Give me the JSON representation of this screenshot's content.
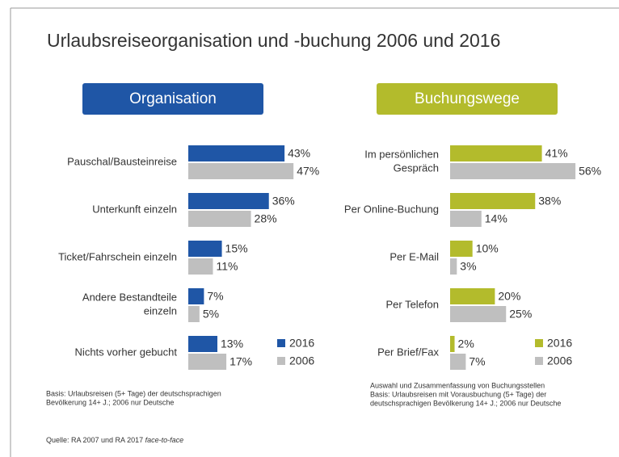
{
  "title": "Urlaubsreiseorganisation und -buchung 2006 und 2016",
  "source": "Quelle: RA 2007 und RA 2017 ",
  "source_italic": "face-to-face",
  "chart_data": [
    {
      "type": "bar",
      "orientation": "horizontal",
      "title": "Organisation",
      "header_color": "#1f56a6",
      "categories": [
        "Pauschal/Bausteinreise",
        "Unterkunft einzeln",
        "Ticket/Fahrschein einzeln",
        "Andere Bestandteile\neinzeln",
        "Nichts vorher gebucht"
      ],
      "series": [
        {
          "name": "2016",
          "color": "#1f56a6",
          "values": [
            43,
            36,
            15,
            7,
            13
          ],
          "value_labels": [
            "43%",
            "36%",
            "15%",
            "7%",
            "13%"
          ]
        },
        {
          "name": "2006",
          "color": "#bfbfbf",
          "values": [
            47,
            28,
            11,
            5,
            17
          ],
          "value_labels": [
            "47%",
            "28%",
            "11%",
            "5%",
            "17%"
          ]
        }
      ],
      "notes": [
        "Basis: Urlaubsreisen (5+ Tage) der deutschsprachigen",
        "Bevölkerung 14+ J.; 2006 nur Deutsche"
      ]
    },
    {
      "type": "bar",
      "orientation": "horizontal",
      "title": "Buchungswege",
      "header_color": "#b3bb2c",
      "categories": [
        "Im persönlichen\nGespräch",
        "Per Online-Buchung",
        "Per E-Mail",
        "Per Telefon",
        "Per Brief/Fax"
      ],
      "series": [
        {
          "name": "2016",
          "color": "#b3bb2c",
          "values": [
            41,
            38,
            10,
            20,
            2
          ],
          "value_labels": [
            "41%",
            "38%",
            "10%",
            "20%",
            "2%"
          ]
        },
        {
          "name": "2006",
          "color": "#bfbfbf",
          "values": [
            56,
            14,
            3,
            25,
            7
          ],
          "value_labels": [
            "56%",
            "14%",
            "3%",
            "25%",
            "7%"
          ]
        }
      ],
      "notes": [
        "Auswahl und Zusammenfassung von Buchungsstellen",
        "Basis: Urlaubsreisen mit Vorausbuchung (5+ Tage) der",
        "deutschsprachigen Bevölkerung 14+ J.; 2006 nur Deutsche"
      ]
    }
  ]
}
